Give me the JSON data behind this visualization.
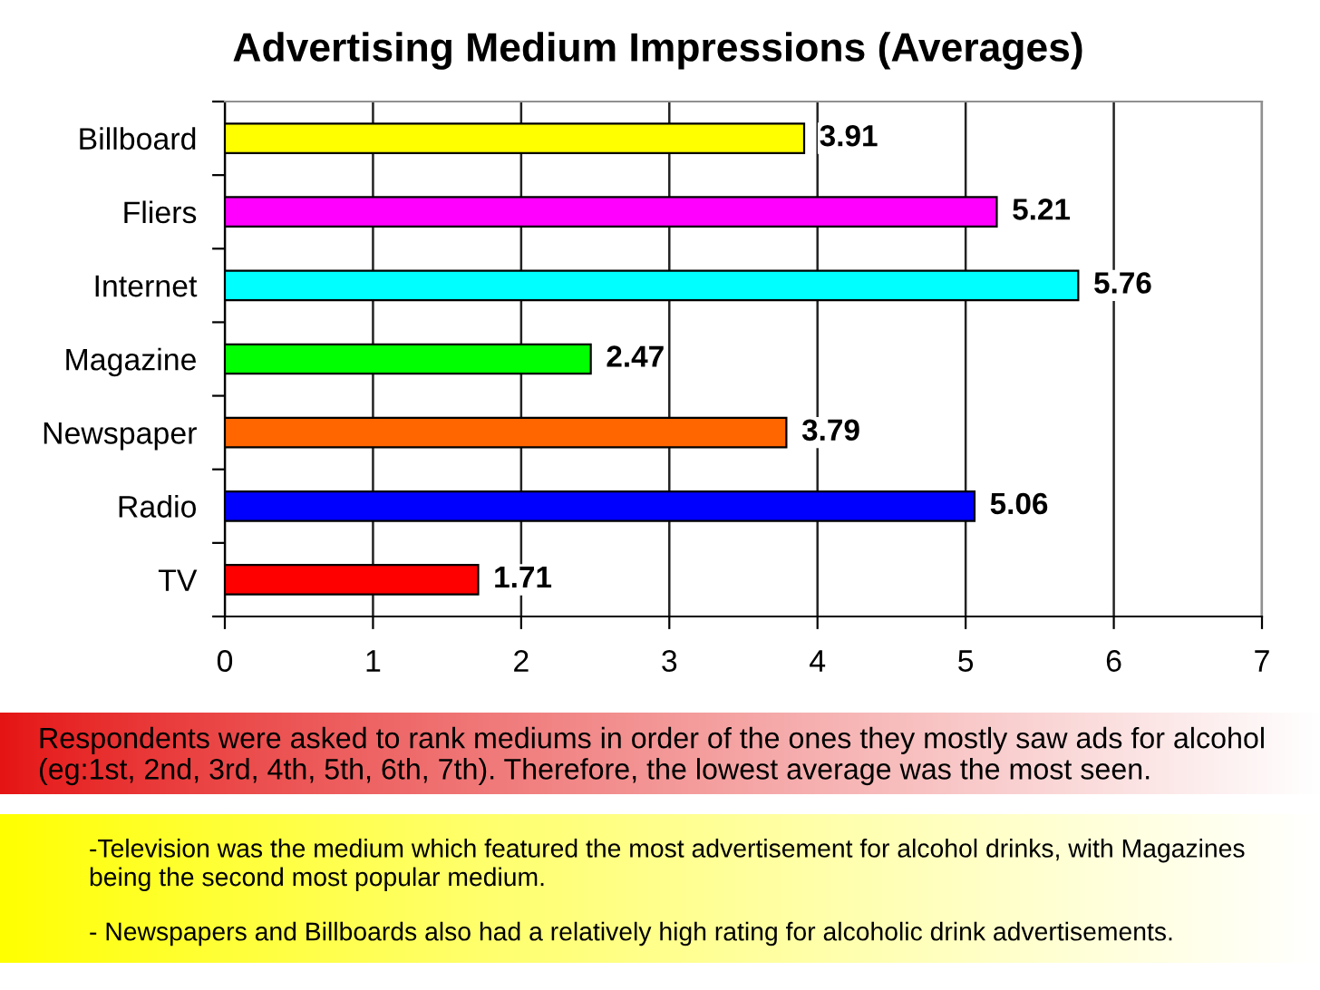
{
  "chart_data": {
    "type": "bar",
    "orientation": "horizontal",
    "title": "Advertising Medium Impressions (Averages)",
    "categories": [
      "Billboard",
      "Fliers",
      "Internet",
      "Magazine",
      "Newspaper",
      "Radio",
      "TV"
    ],
    "values": [
      3.91,
      5.21,
      5.76,
      2.47,
      3.79,
      5.06,
      1.71
    ],
    "colors": [
      "#ffff00",
      "#ff00ff",
      "#00ffff",
      "#00ff00",
      "#ff6600",
      "#0000ff",
      "#ff0000"
    ],
    "xlim": [
      0,
      7
    ],
    "xticks": [
      0,
      1,
      2,
      3,
      4,
      5,
      6,
      7
    ],
    "grid": "x",
    "data_labels": true,
    "annotations": [
      "Respondents were asked to rank mediums in order of the ones they mostly saw ads for alcohol\n(eg:1st, 2nd, 3rd, 4th, 5th, 6th, 7th). Therefore, the lowest average was the most seen.",
      "-Television was the medium which featured the most advertisement for alcohol drinks, with Magazines\nbeing the second most popular medium.",
      "- Newspapers and Billboards also had a relatively high rating for alcoholic drink advertisements."
    ]
  }
}
